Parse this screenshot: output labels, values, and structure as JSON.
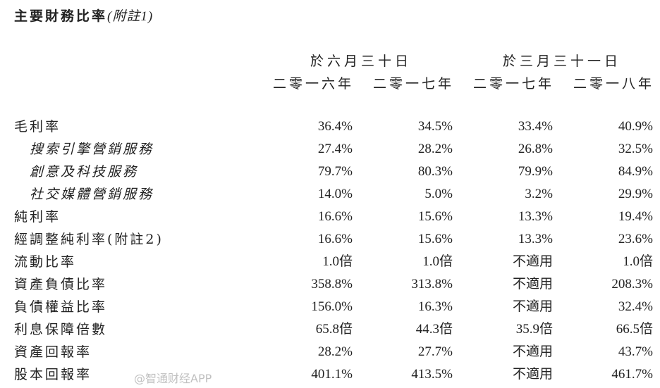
{
  "title": "主要財務比率",
  "title_note": "(附註1)",
  "groups": [
    "於六月三十日",
    "於三月三十一日"
  ],
  "years": [
    "二零一六年",
    "二零一七年",
    "二零一七年",
    "二零一八年"
  ],
  "rows": [
    {
      "label": "毛利率",
      "sub": false,
      "values": [
        "36.4%",
        "34.5%",
        "33.4%",
        "40.9%"
      ]
    },
    {
      "label": "搜索引擎營銷服務",
      "sub": true,
      "values": [
        "27.4%",
        "28.2%",
        "26.8%",
        "32.5%"
      ]
    },
    {
      "label": "創意及科技服務",
      "sub": true,
      "values": [
        "79.7%",
        "80.3%",
        "79.9%",
        "84.9%"
      ]
    },
    {
      "label": "社交媒體營銷服務",
      "sub": true,
      "values": [
        "14.0%",
        "5.0%",
        "3.2%",
        "29.9%"
      ]
    },
    {
      "label": "純利率",
      "sub": false,
      "values": [
        "16.6%",
        "15.6%",
        "13.3%",
        "19.4%"
      ]
    },
    {
      "label": "經調整純利率(附註2)",
      "sub": false,
      "values": [
        "16.6%",
        "15.6%",
        "13.3%",
        "23.6%"
      ]
    },
    {
      "label": "流動比率",
      "sub": false,
      "values": [
        "1.0倍",
        "1.0倍",
        "不適用",
        "1.0倍"
      ]
    },
    {
      "label": "資產負債比率",
      "sub": false,
      "values": [
        "358.8%",
        "313.8%",
        "不適用",
        "208.3%"
      ]
    },
    {
      "label": "負債權益比率",
      "sub": false,
      "values": [
        "156.0%",
        "16.3%",
        "不適用",
        "32.4%"
      ]
    },
    {
      "label": "利息保障倍數",
      "sub": false,
      "values": [
        "65.8倍",
        "44.3倍",
        "35.9倍",
        "66.5倍"
      ]
    },
    {
      "label": "資產回報率",
      "sub": false,
      "values": [
        "28.2%",
        "27.7%",
        "不適用",
        "43.7%"
      ]
    },
    {
      "label": "股本回報率",
      "sub": false,
      "values": [
        "401.1%",
        "413.5%",
        "不適用",
        "461.7%"
      ]
    }
  ],
  "watermark": "@智通财经APP"
}
